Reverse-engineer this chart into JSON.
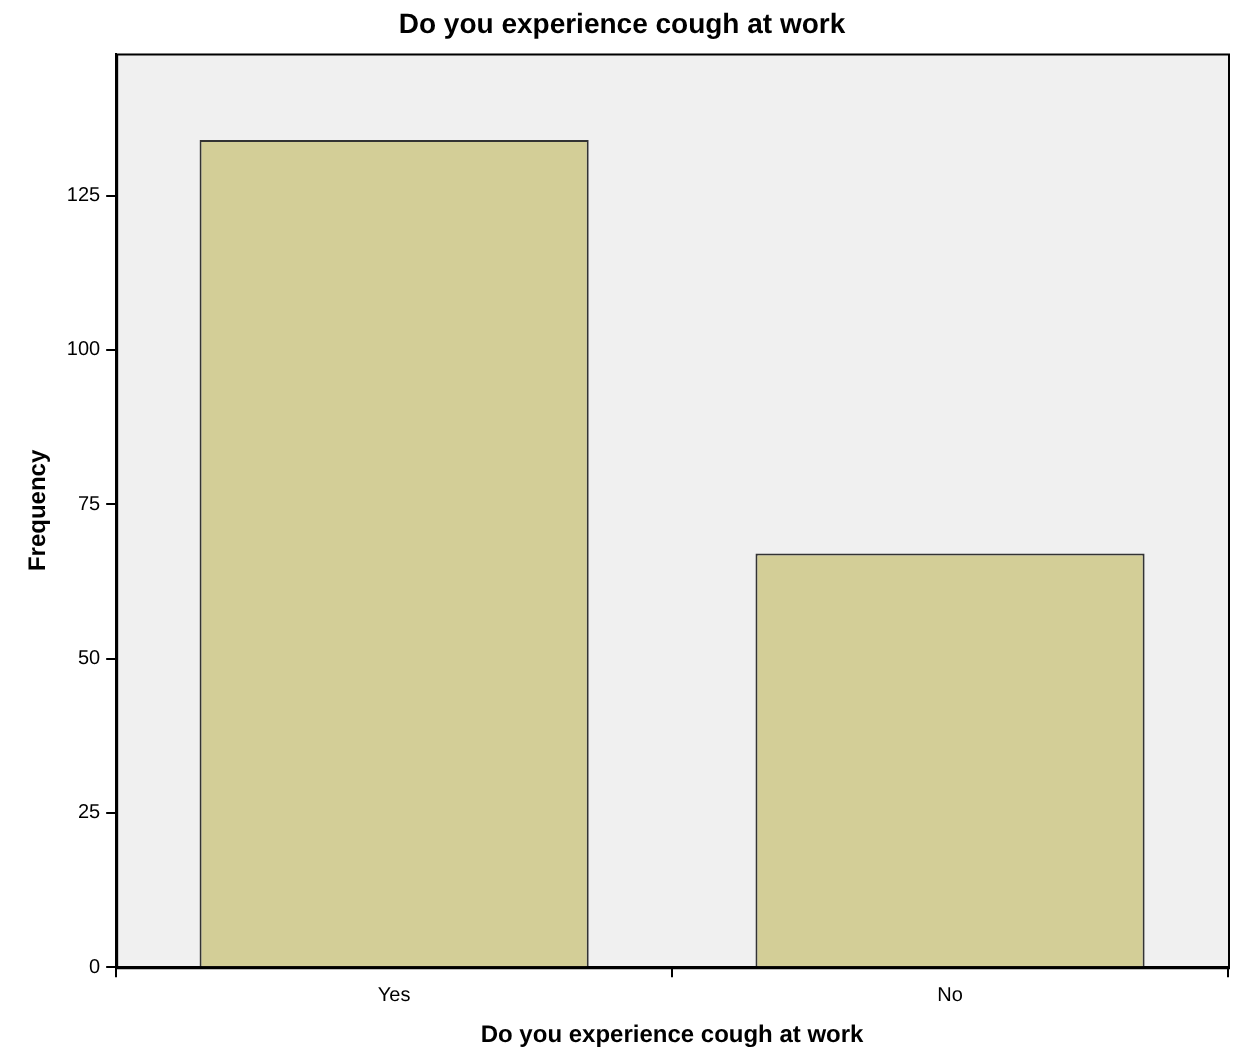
{
  "chart_data": {
    "type": "bar",
    "title": "Do you experience cough at work",
    "xlabel": "Do you experience cough at work",
    "ylabel": "Frequency",
    "categories": [
      "Yes",
      "No"
    ],
    "values": [
      134,
      67
    ],
    "color": "#d3ce97",
    "ylim": [
      0,
      148
    ],
    "yticks": [
      0,
      25,
      50,
      75,
      100,
      125
    ]
  }
}
